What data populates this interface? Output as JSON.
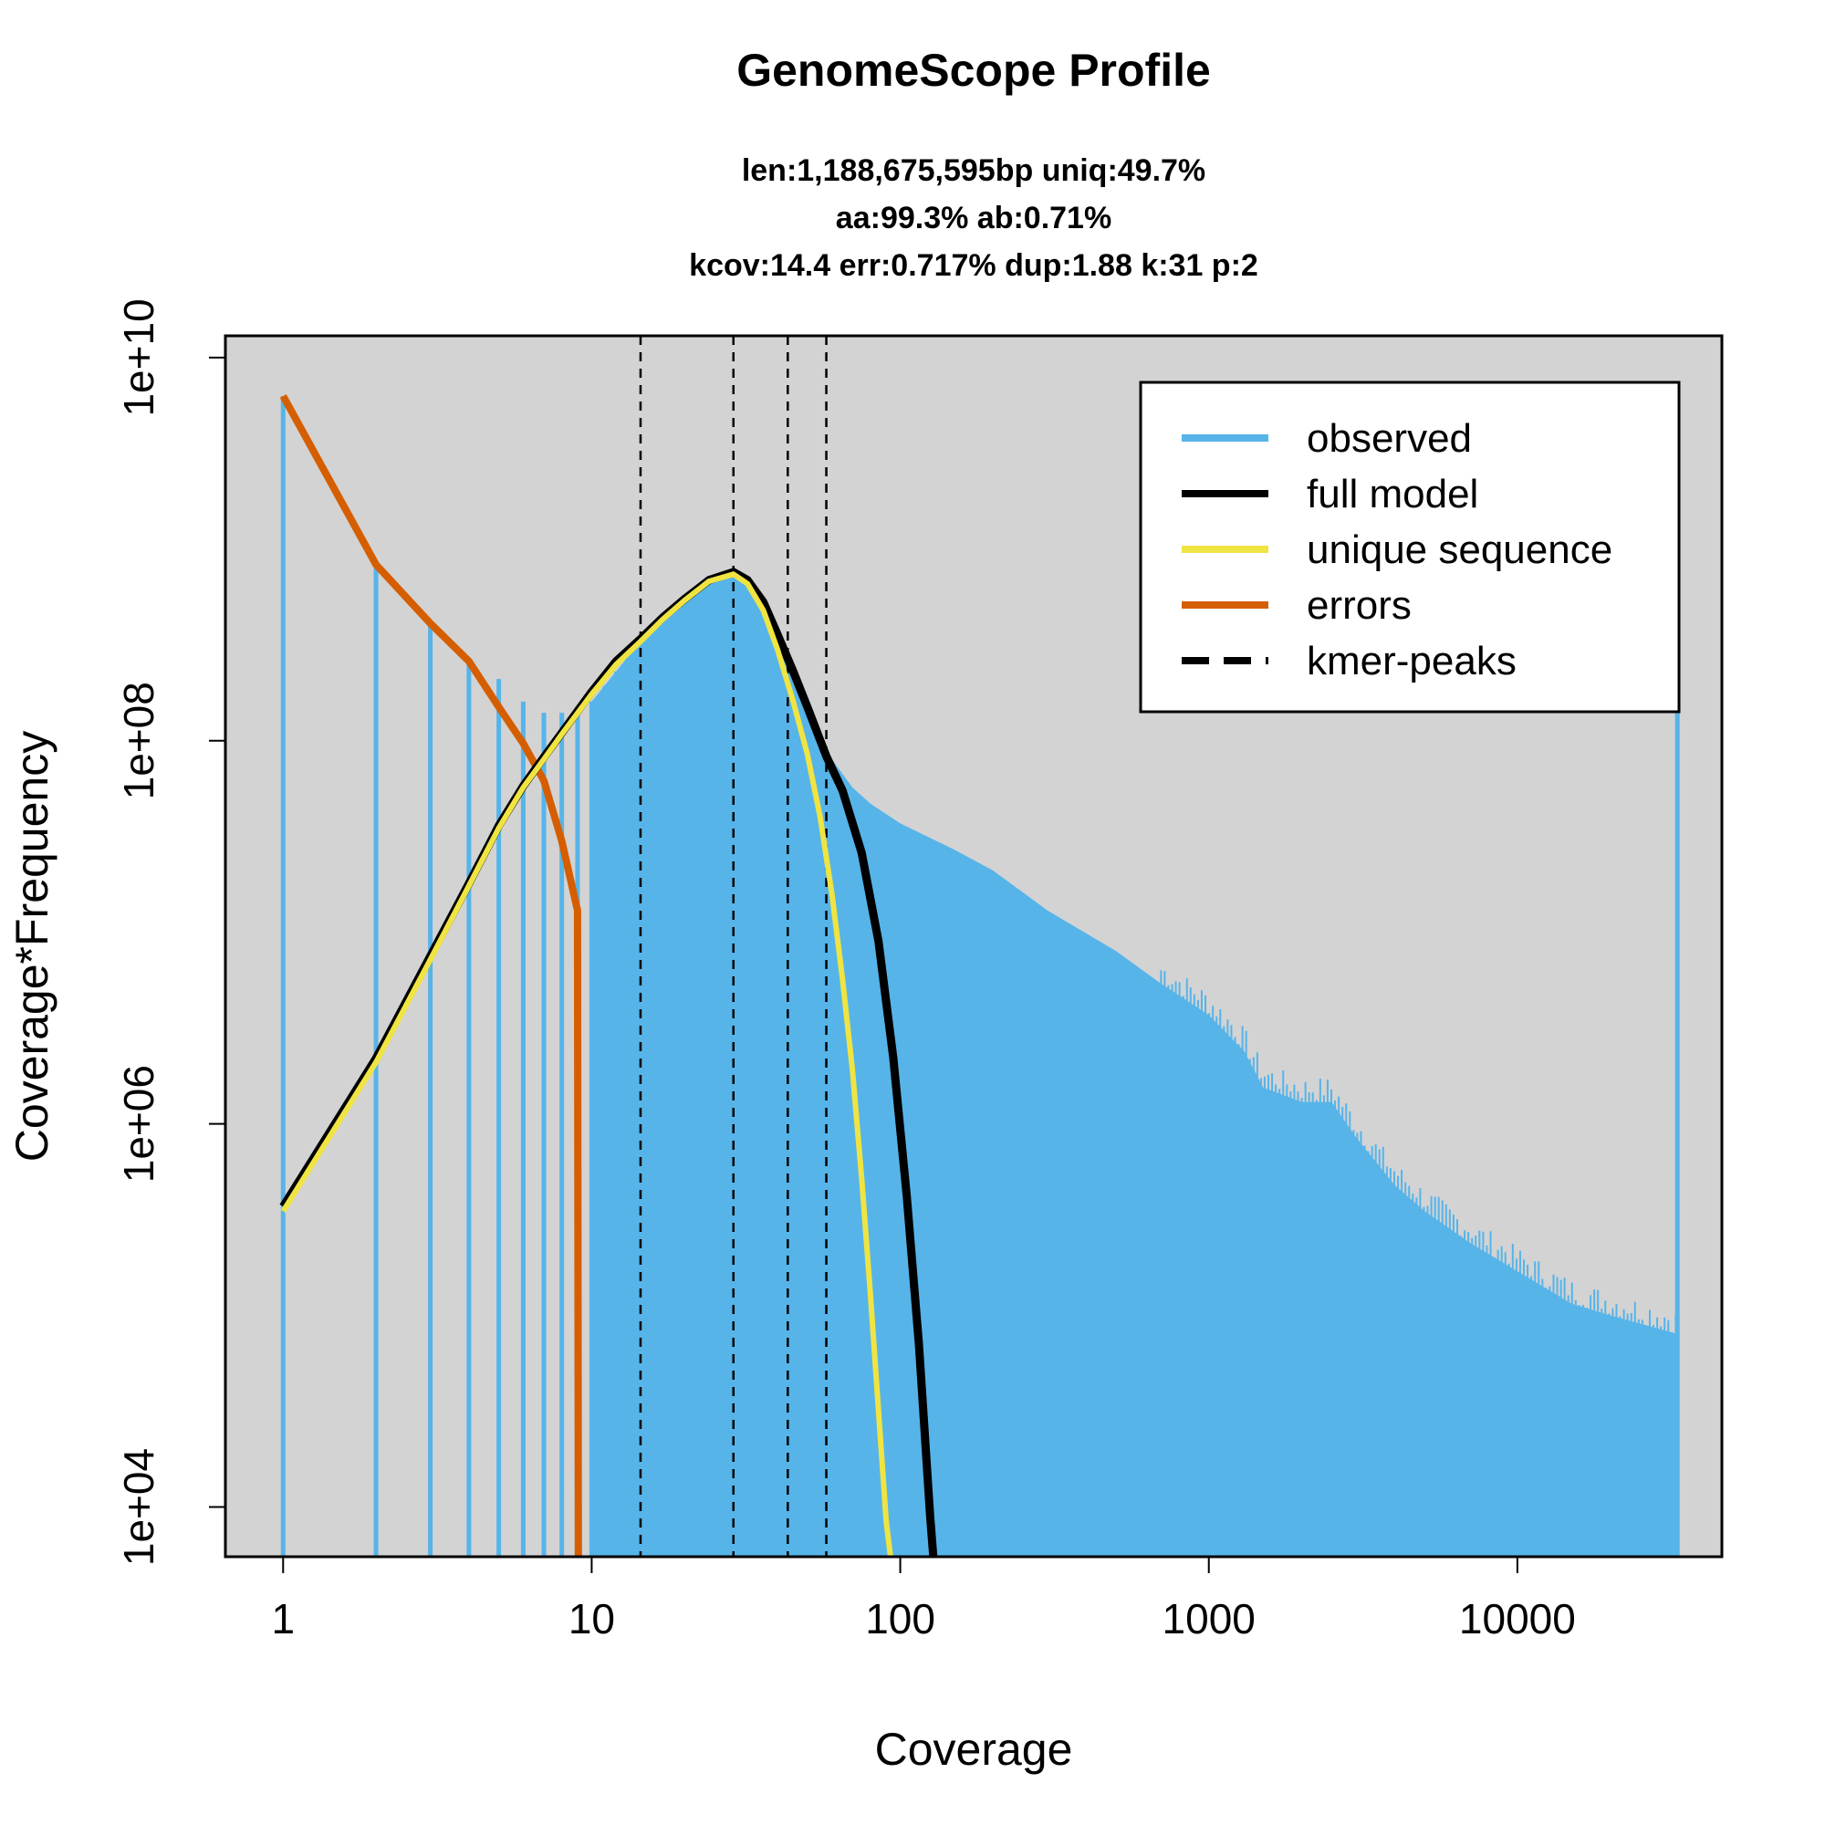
{
  "chart_data": {
    "type": "line",
    "title": "GenomeScope Profile",
    "subtitle_lines": [
      "len:1,188,675,595bp uniq:49.7%",
      "aa:99.3% ab:0.71%",
      "kcov:14.4 err:0.717%  dup:1.88  k:31 p:2"
    ],
    "xlabel": "Coverage",
    "ylabel": "Coverage*Frequency",
    "x_scale": "log",
    "y_scale": "log",
    "xlim": [
      0.65,
      46000
    ],
    "ylim": [
      5500,
      13000000000
    ],
    "x_ticks": [
      {
        "value": 1,
        "label": "1"
      },
      {
        "value": 10,
        "label": "10"
      },
      {
        "value": 100,
        "label": "100"
      },
      {
        "value": 1000,
        "label": "1000"
      },
      {
        "value": 10000,
        "label": "10000"
      }
    ],
    "y_ticks": [
      {
        "value": 10000,
        "label": "1e+04"
      },
      {
        "value": 1000000,
        "label": "1e+06"
      },
      {
        "value": 100000000,
        "label": "1e+08"
      },
      {
        "value": 10000000000,
        "label": "1e+10"
      }
    ],
    "grid": false,
    "legend_position": "top-right",
    "colors": {
      "plot_background": "#d3d3d3",
      "observed": "#56b4e9",
      "full_model": "#000000",
      "unique_sequence": "#f0e442",
      "errors": "#d55e00",
      "kmer_peaks": "#000000"
    },
    "legend": [
      {
        "label": "observed",
        "color": "#56b4e9",
        "style": "solid"
      },
      {
        "label": "full model",
        "color": "#000000",
        "style": "solid"
      },
      {
        "label": "unique sequence",
        "color": "#f0e442",
        "style": "solid"
      },
      {
        "label": "errors",
        "color": "#d55e00",
        "style": "solid"
      },
      {
        "label": "kmer-peaks",
        "color": "#000000",
        "style": "dashed"
      }
    ],
    "observed_discrete": [
      [
        1,
        6300000000
      ],
      [
        2,
        820000000
      ],
      [
        3,
        400000000
      ],
      [
        4,
        270000000
      ],
      [
        5,
        210000000
      ],
      [
        6,
        160000000
      ],
      [
        7,
        140000000
      ],
      [
        8,
        140000000
      ],
      [
        9,
        150000000
      ],
      [
        10,
        160000000
      ]
    ],
    "observed_envelope": [
      [
        10,
        160000000
      ],
      [
        12,
        230000000
      ],
      [
        14.4,
        330000000
      ],
      [
        17,
        430000000
      ],
      [
        20,
        540000000
      ],
      [
        24,
        680000000
      ],
      [
        28.8,
        750000000
      ],
      [
        32,
        700000000
      ],
      [
        36,
        560000000
      ],
      [
        40,
        400000000
      ],
      [
        45,
        260000000
      ],
      [
        50,
        170000000
      ],
      [
        56,
        105000000
      ],
      [
        60,
        80000000
      ],
      [
        70,
        57000000
      ],
      [
        80,
        47000000
      ],
      [
        100,
        37000000
      ],
      [
        150,
        27000000
      ],
      [
        200,
        21000000
      ],
      [
        300,
        13000000
      ],
      [
        500,
        8000000
      ],
      [
        700,
        5400000
      ],
      [
        1000,
        3700000
      ],
      [
        1300,
        2400000
      ],
      [
        1500,
        1550000
      ],
      [
        2000,
        1300000
      ],
      [
        2500,
        1300000
      ],
      [
        3000,
        850000
      ],
      [
        4000,
        480000
      ],
      [
        5000,
        350000
      ],
      [
        7000,
        240000
      ],
      [
        10000,
        170000
      ],
      [
        15000,
        115000
      ],
      [
        20000,
        100000
      ],
      [
        33000,
        80000
      ]
    ],
    "observed_tail_spike": [
      [
        33000,
        210000000
      ]
    ],
    "full_model": [
      [
        1,
        370000
      ],
      [
        2,
        2200000
      ],
      [
        3,
        7500000
      ],
      [
        4,
        18000000
      ],
      [
        5,
        36000000
      ],
      [
        6,
        58000000
      ],
      [
        7,
        82000000
      ],
      [
        8,
        110000000
      ],
      [
        10,
        180000000
      ],
      [
        12,
        260000000
      ],
      [
        14.4,
        340000000
      ],
      [
        17,
        440000000
      ],
      [
        20,
        550000000
      ],
      [
        24,
        690000000
      ],
      [
        28.8,
        760000000
      ],
      [
        32,
        690000000
      ],
      [
        36,
        530000000
      ],
      [
        40,
        360000000
      ],
      [
        45,
        230000000
      ],
      [
        50,
        150000000
      ],
      [
        57.6,
        83000000
      ],
      [
        65,
        55000000
      ],
      [
        75,
        26000000
      ],
      [
        85,
        9000000
      ],
      [
        95,
        2200000
      ],
      [
        105,
        420000
      ],
      [
        115,
        70000
      ],
      [
        125,
        9000
      ],
      [
        128,
        5500
      ]
    ],
    "unique_sequence": [
      [
        1,
        350000
      ],
      [
        2,
        2100000
      ],
      [
        3,
        7200000
      ],
      [
        4,
        17500000
      ],
      [
        5,
        35000000
      ],
      [
        6,
        57000000
      ],
      [
        7,
        80000000
      ],
      [
        8,
        108000000
      ],
      [
        10,
        175000000
      ],
      [
        12,
        250000000
      ],
      [
        14.4,
        330000000
      ],
      [
        17,
        430000000
      ],
      [
        20,
        540000000
      ],
      [
        24,
        680000000
      ],
      [
        28.8,
        740000000
      ],
      [
        32,
        660000000
      ],
      [
        36,
        480000000
      ],
      [
        40,
        300000000
      ],
      [
        45,
        160000000
      ],
      [
        50,
        85000000
      ],
      [
        55,
        40000000
      ],
      [
        60,
        16000000
      ],
      [
        65,
        5700000
      ],
      [
        70,
        1900000
      ],
      [
        75,
        520000
      ],
      [
        80,
        130000
      ],
      [
        85,
        32000
      ],
      [
        90,
        8500
      ],
      [
        93,
        5500
      ]
    ],
    "errors": [
      [
        1,
        6300000000
      ],
      [
        2,
        830000000
      ],
      [
        3,
        410000000
      ],
      [
        4,
        260000000
      ],
      [
        5,
        150000000
      ],
      [
        6,
        97000000
      ],
      [
        7,
        62000000
      ],
      [
        8,
        30000000
      ],
      [
        9,
        13000000
      ],
      [
        9.05,
        5500
      ]
    ],
    "kmer_peaks": [
      14.4,
      28.8,
      43.2,
      57.6
    ]
  }
}
